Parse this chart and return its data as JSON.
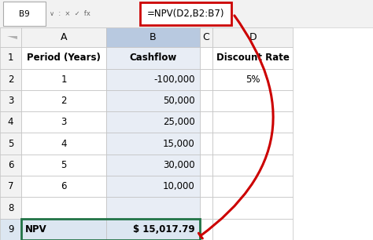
{
  "formula_bar_cell": "B9",
  "formula_bar_formula": "=NPV(D2,B2:B7)",
  "col_labels": [
    "",
    "A",
    "B",
    "C",
    "D"
  ],
  "rows": [
    [
      "Period (Years)",
      "Cashflow",
      "",
      "Discount Rate"
    ],
    [
      "1",
      "-100,000",
      "",
      "5%"
    ],
    [
      "2",
      "50,000",
      "",
      ""
    ],
    [
      "3",
      "25,000",
      "",
      ""
    ],
    [
      "4",
      "15,000",
      "",
      ""
    ],
    [
      "5",
      "30,000",
      "",
      ""
    ],
    [
      "6",
      "10,000",
      "",
      ""
    ],
    [
      "",
      "",
      "",
      ""
    ],
    [
      "NPV",
      "$ 15,017.79",
      "",
      ""
    ]
  ],
  "col_header_bg": "#f2f2f2",
  "selected_col_header_bg": "#b8c9e0",
  "selected_col_bg": "#e8edf5",
  "npv_row_bg": "#dce6f1",
  "formula_box_border": "#cc0000",
  "arrow_color": "#cc0000",
  "grid_color": "#c0c0c0",
  "selected_cell_border": "#217346",
  "formula_bar_bg": "#f2f2f2",
  "white": "#ffffff"
}
